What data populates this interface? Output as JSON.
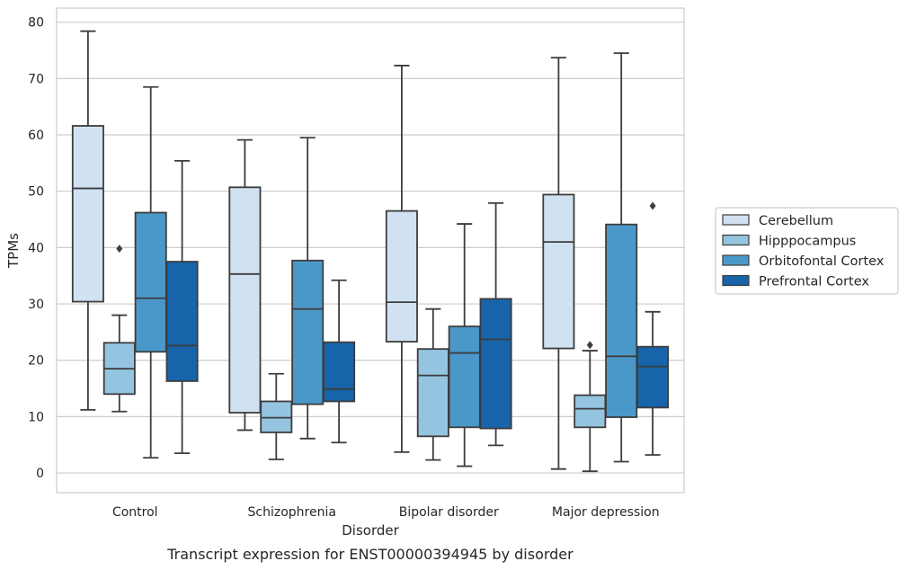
{
  "caption": "Transcript expression for ENST00000394945 by disorder",
  "chart_data": {
    "type": "box",
    "title": "",
    "xlabel": "Disorder",
    "ylabel": "TPMs",
    "ylim": [
      -3.5,
      82.5
    ],
    "yticks": [
      0,
      10,
      20,
      30,
      40,
      50,
      60,
      70,
      80
    ],
    "grid": "horizontal",
    "legend_position": "right",
    "categories": [
      "Control",
      "Schizophrenia",
      "Bipolar disorder",
      "Major depression"
    ],
    "series": [
      {
        "name": "Cerebellum",
        "color": "#d0e1f2",
        "boxes": [
          {
            "whisker_low": 11.2,
            "q1": 30.4,
            "median": 50.5,
            "q3": 61.6,
            "whisker_high": 78.4,
            "outliers": []
          },
          {
            "whisker_low": 7.6,
            "q1": 10.7,
            "median": 35.3,
            "q3": 50.7,
            "whisker_high": 59.1,
            "outliers": []
          },
          {
            "whisker_low": 3.7,
            "q1": 23.3,
            "median": 30.3,
            "q3": 46.5,
            "whisker_high": 72.3,
            "outliers": []
          },
          {
            "whisker_low": 0.7,
            "q1": 22.1,
            "median": 41.0,
            "q3": 49.4,
            "whisker_high": 73.7,
            "outliers": []
          }
        ]
      },
      {
        "name": "Hipppocampus",
        "color": "#94c4df",
        "boxes": [
          {
            "whisker_low": 10.9,
            "q1": 14.0,
            "median": 18.5,
            "q3": 23.1,
            "whisker_high": 28.0,
            "outliers": [
              39.8
            ]
          },
          {
            "whisker_low": 2.4,
            "q1": 7.2,
            "median": 9.8,
            "q3": 12.7,
            "whisker_high": 17.6,
            "outliers": []
          },
          {
            "whisker_low": 2.3,
            "q1": 6.5,
            "median": 17.3,
            "q3": 22.0,
            "whisker_high": 29.1,
            "outliers": []
          },
          {
            "whisker_low": 0.3,
            "q1": 8.1,
            "median": 11.4,
            "q3": 13.8,
            "whisker_high": 21.7,
            "outliers": [
              22.7
            ]
          }
        ]
      },
      {
        "name": "Orbitofontal Cortex",
        "color": "#4a98c9",
        "boxes": [
          {
            "whisker_low": 2.7,
            "q1": 21.5,
            "median": 31.0,
            "q3": 46.2,
            "whisker_high": 68.5,
            "outliers": []
          },
          {
            "whisker_low": 6.1,
            "q1": 12.2,
            "median": 29.1,
            "q3": 37.7,
            "whisker_high": 59.5,
            "outliers": []
          },
          {
            "whisker_low": 1.2,
            "q1": 8.1,
            "median": 21.3,
            "q3": 26.0,
            "whisker_high": 44.2,
            "outliers": []
          },
          {
            "whisker_low": 2.0,
            "q1": 9.9,
            "median": 20.7,
            "q3": 44.1,
            "whisker_high": 74.5,
            "outliers": []
          }
        ]
      },
      {
        "name": "Prefrontal Cortex",
        "color": "#1764ab",
        "boxes": [
          {
            "whisker_low": 3.5,
            "q1": 16.3,
            "median": 22.6,
            "q3": 37.5,
            "whisker_high": 55.4,
            "outliers": []
          },
          {
            "whisker_low": 5.4,
            "q1": 12.7,
            "median": 14.9,
            "q3": 23.2,
            "whisker_high": 34.2,
            "outliers": []
          },
          {
            "whisker_low": 4.9,
            "q1": 7.9,
            "median": 23.7,
            "q3": 30.9,
            "whisker_high": 47.9,
            "outliers": []
          },
          {
            "whisker_low": 3.2,
            "q1": 11.6,
            "median": 18.9,
            "q3": 22.4,
            "whisker_high": 28.6,
            "outliers": [
              47.4
            ]
          }
        ]
      }
    ]
  }
}
